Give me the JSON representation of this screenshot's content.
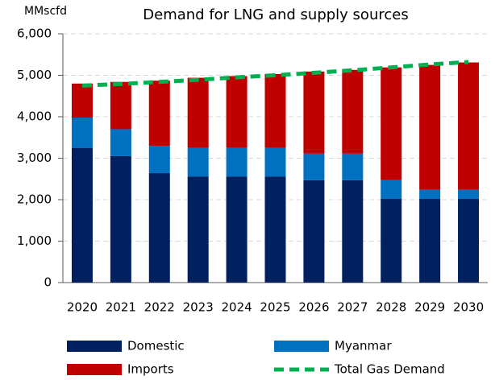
{
  "chart_data": {
    "type": "bar",
    "stacked": true,
    "title": "Demand for LNG and supply sources",
    "y_label": "MMscfd",
    "categories": [
      "2020",
      "2021",
      "2022",
      "2023",
      "2024",
      "2025",
      "2026",
      "2027",
      "2028",
      "2029",
      "2030"
    ],
    "series": [
      {
        "name": "Domestic",
        "color": "#002060",
        "values": [
          3250,
          3050,
          2640,
          2560,
          2560,
          2560,
          2470,
          2470,
          2020,
          2020,
          2020
        ]
      },
      {
        "name": "Myanmar",
        "color": "#0070c0",
        "values": [
          730,
          650,
          660,
          690,
          690,
          690,
          640,
          640,
          450,
          220,
          220
        ]
      },
      {
        "name": "Imports",
        "color": "#c00000",
        "values": [
          820,
          1140,
          1570,
          1690,
          1730,
          1780,
          1980,
          2020,
          2720,
          3010,
          3070
        ]
      },
      {
        "name": "Total Gas Demand",
        "color": "#00b050",
        "type": "line",
        "dashed": true,
        "values": [
          4750,
          4790,
          4840,
          4890,
          4950,
          5000,
          5060,
          5120,
          5190,
          5260,
          5320
        ]
      }
    ],
    "ylim": [
      0,
      6000
    ],
    "yticks": [
      0,
      {
        "value": 1000,
        "label": "1,000"
      },
      {
        "value": 2000,
        "label": "2,000"
      },
      {
        "value": 3000,
        "label": "3,000"
      },
      {
        "value": 4000,
        "label": "4,000"
      },
      {
        "value": 5000,
        "label": "5,000"
      },
      {
        "value": 6000,
        "label": "6,000"
      }
    ],
    "grid": true,
    "legend": "bottom"
  }
}
